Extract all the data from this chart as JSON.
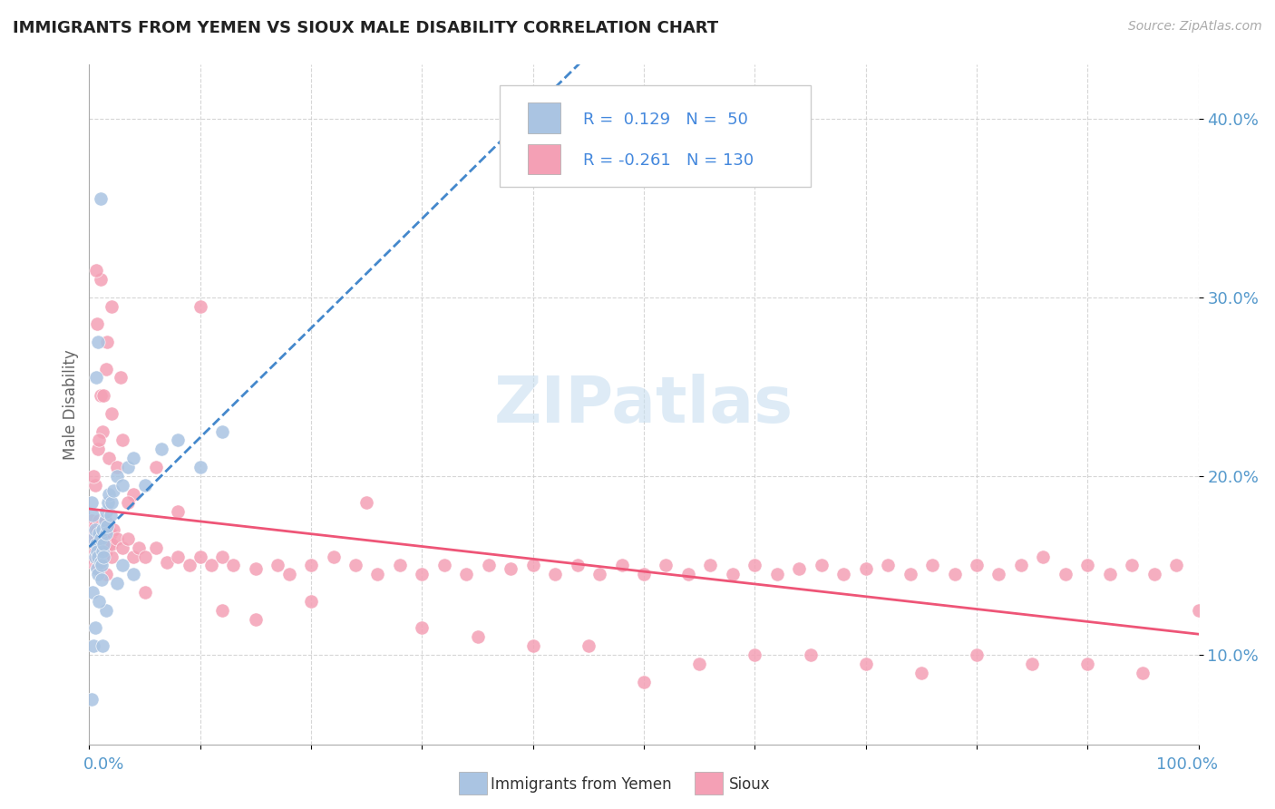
{
  "title": "IMMIGRANTS FROM YEMEN VS SIOUX MALE DISABILITY CORRELATION CHART",
  "source_text": "Source: ZipAtlas.com",
  "ylabel": "Male Disability",
  "xlim": [
    0,
    100
  ],
  "ylim": [
    5,
    43
  ],
  "ytick_values": [
    10,
    20,
    30,
    40
  ],
  "xtick_values": [
    0,
    10,
    20,
    30,
    40,
    50,
    60,
    70,
    80,
    90,
    100
  ],
  "color_yemen": "#aac4e2",
  "color_sioux": "#f4a0b5",
  "trend_color_yemen": "#4488cc",
  "trend_color_sioux": "#ee5577",
  "background_color": "#ffffff",
  "grid_color": "#cccccc",
  "tick_color": "#5599cc",
  "title_color": "#222222",
  "ylabel_color": "#666666",
  "watermark_color": "#c8dff0",
  "legend_text_color": "#4488dd",
  "yemen_scatter": [
    [
      0.2,
      18.5
    ],
    [
      0.3,
      17.8
    ],
    [
      0.4,
      16.5
    ],
    [
      0.5,
      17.0
    ],
    [
      0.5,
      15.5
    ],
    [
      0.6,
      16.2
    ],
    [
      0.7,
      15.8
    ],
    [
      0.7,
      14.8
    ],
    [
      0.8,
      15.5
    ],
    [
      0.8,
      14.5
    ],
    [
      0.9,
      16.8
    ],
    [
      1.0,
      15.2
    ],
    [
      1.0,
      16.5
    ],
    [
      1.1,
      15.0
    ],
    [
      1.1,
      14.2
    ],
    [
      1.2,
      15.8
    ],
    [
      1.2,
      17.0
    ],
    [
      1.3,
      16.2
    ],
    [
      1.3,
      15.5
    ],
    [
      1.4,
      17.5
    ],
    [
      1.5,
      16.8
    ],
    [
      1.5,
      18.0
    ],
    [
      1.6,
      17.2
    ],
    [
      1.7,
      18.5
    ],
    [
      1.8,
      19.0
    ],
    [
      1.9,
      17.8
    ],
    [
      2.0,
      18.5
    ],
    [
      2.2,
      19.2
    ],
    [
      2.5,
      20.0
    ],
    [
      3.0,
      19.5
    ],
    [
      3.5,
      20.5
    ],
    [
      4.0,
      21.0
    ],
    [
      5.0,
      19.5
    ],
    [
      6.5,
      21.5
    ],
    [
      8.0,
      22.0
    ],
    [
      10.0,
      20.5
    ],
    [
      12.0,
      22.5
    ],
    [
      0.6,
      25.5
    ],
    [
      0.8,
      27.5
    ],
    [
      1.0,
      35.5
    ],
    [
      0.3,
      13.5
    ],
    [
      0.5,
      11.5
    ],
    [
      1.5,
      12.5
    ],
    [
      2.5,
      14.0
    ],
    [
      4.0,
      14.5
    ],
    [
      0.2,
      7.5
    ],
    [
      0.4,
      10.5
    ],
    [
      1.2,
      10.5
    ],
    [
      0.9,
      13.0
    ],
    [
      3.0,
      15.0
    ]
  ],
  "sioux_scatter": [
    [
      0.2,
      17.5
    ],
    [
      0.3,
      16.5
    ],
    [
      0.3,
      15.2
    ],
    [
      0.4,
      16.8
    ],
    [
      0.5,
      17.2
    ],
    [
      0.5,
      15.8
    ],
    [
      0.6,
      16.5
    ],
    [
      0.6,
      15.0
    ],
    [
      0.7,
      17.0
    ],
    [
      0.7,
      15.5
    ],
    [
      0.8,
      16.2
    ],
    [
      0.8,
      15.0
    ],
    [
      0.9,
      17.5
    ],
    [
      0.9,
      14.8
    ],
    [
      1.0,
      16.0
    ],
    [
      1.0,
      15.5
    ],
    [
      1.1,
      16.5
    ],
    [
      1.1,
      17.0
    ],
    [
      1.2,
      15.5
    ],
    [
      1.2,
      16.8
    ],
    [
      1.3,
      17.2
    ],
    [
      1.4,
      16.0
    ],
    [
      1.5,
      17.5
    ],
    [
      1.5,
      15.8
    ],
    [
      1.6,
      16.5
    ],
    [
      1.7,
      17.0
    ],
    [
      1.8,
      16.2
    ],
    [
      1.9,
      16.8
    ],
    [
      2.0,
      15.5
    ],
    [
      2.0,
      16.2
    ],
    [
      2.2,
      17.0
    ],
    [
      2.5,
      16.5
    ],
    [
      3.0,
      16.0
    ],
    [
      3.5,
      16.5
    ],
    [
      4.0,
      15.5
    ],
    [
      4.5,
      16.0
    ],
    [
      5.0,
      15.5
    ],
    [
      6.0,
      16.0
    ],
    [
      7.0,
      15.2
    ],
    [
      8.0,
      15.5
    ],
    [
      9.0,
      15.0
    ],
    [
      10.0,
      15.5
    ],
    [
      11.0,
      15.0
    ],
    [
      12.0,
      15.5
    ],
    [
      13.0,
      15.0
    ],
    [
      15.0,
      14.8
    ],
    [
      17.0,
      15.0
    ],
    [
      18.0,
      14.5
    ],
    [
      20.0,
      15.0
    ],
    [
      22.0,
      15.5
    ],
    [
      24.0,
      15.0
    ],
    [
      26.0,
      14.5
    ],
    [
      28.0,
      15.0
    ],
    [
      30.0,
      14.5
    ],
    [
      32.0,
      15.0
    ],
    [
      34.0,
      14.5
    ],
    [
      36.0,
      15.0
    ],
    [
      38.0,
      14.8
    ],
    [
      40.0,
      15.0
    ],
    [
      42.0,
      14.5
    ],
    [
      44.0,
      15.0
    ],
    [
      46.0,
      14.5
    ],
    [
      48.0,
      15.0
    ],
    [
      50.0,
      14.5
    ],
    [
      52.0,
      15.0
    ],
    [
      54.0,
      14.5
    ],
    [
      56.0,
      15.0
    ],
    [
      58.0,
      14.5
    ],
    [
      60.0,
      15.0
    ],
    [
      62.0,
      14.5
    ],
    [
      64.0,
      14.8
    ],
    [
      66.0,
      15.0
    ],
    [
      68.0,
      14.5
    ],
    [
      70.0,
      14.8
    ],
    [
      72.0,
      15.0
    ],
    [
      74.0,
      14.5
    ],
    [
      76.0,
      15.0
    ],
    [
      78.0,
      14.5
    ],
    [
      80.0,
      15.0
    ],
    [
      82.0,
      14.5
    ],
    [
      84.0,
      15.0
    ],
    [
      86.0,
      15.5
    ],
    [
      88.0,
      14.5
    ],
    [
      90.0,
      15.0
    ],
    [
      92.0,
      14.5
    ],
    [
      94.0,
      15.0
    ],
    [
      96.0,
      14.5
    ],
    [
      98.0,
      15.0
    ],
    [
      100.0,
      12.5
    ],
    [
      0.5,
      19.5
    ],
    [
      0.8,
      21.5
    ],
    [
      1.0,
      24.5
    ],
    [
      1.2,
      22.5
    ],
    [
      1.5,
      26.0
    ],
    [
      1.8,
      21.0
    ],
    [
      2.0,
      23.5
    ],
    [
      2.5,
      20.5
    ],
    [
      3.0,
      22.0
    ],
    [
      0.7,
      28.5
    ],
    [
      1.0,
      31.0
    ],
    [
      1.3,
      24.5
    ],
    [
      4.0,
      19.0
    ],
    [
      1.6,
      27.5
    ],
    [
      0.4,
      20.0
    ],
    [
      3.5,
      18.5
    ],
    [
      6.0,
      20.5
    ],
    [
      2.8,
      25.5
    ],
    [
      2.0,
      29.5
    ],
    [
      0.9,
      22.0
    ],
    [
      8.0,
      18.0
    ],
    [
      0.6,
      31.5
    ],
    [
      1.5,
      14.5
    ],
    [
      5.0,
      13.5
    ],
    [
      12.0,
      12.5
    ],
    [
      20.0,
      13.0
    ],
    [
      30.0,
      11.5
    ],
    [
      45.0,
      10.5
    ],
    [
      55.0,
      9.5
    ],
    [
      65.0,
      10.0
    ],
    [
      75.0,
      9.0
    ],
    [
      85.0,
      9.5
    ],
    [
      95.0,
      9.0
    ],
    [
      50.0,
      8.5
    ],
    [
      70.0,
      9.5
    ],
    [
      40.0,
      10.5
    ],
    [
      60.0,
      10.0
    ],
    [
      80.0,
      10.0
    ],
    [
      35.0,
      11.0
    ],
    [
      90.0,
      9.5
    ],
    [
      15.0,
      12.0
    ],
    [
      25.0,
      18.5
    ],
    [
      10.0,
      29.5
    ]
  ]
}
